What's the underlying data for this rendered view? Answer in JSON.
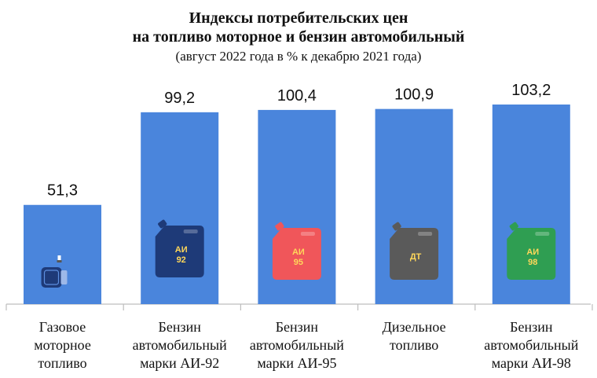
{
  "chart_data": {
    "type": "bar",
    "title": "Индексы потребительских цен",
    "title_line2": "на топливо моторное и бензин автомобильный",
    "subtitle": "(август 2022 года в % к декабрю 2021 года)",
    "categories": [
      [
        "Газовое",
        "моторное",
        "топливо"
      ],
      [
        "Бензин",
        "автомобильный",
        "марки АИ-92"
      ],
      [
        "Бензин",
        "автомобильный",
        "марки АИ-95"
      ],
      [
        "Дизельное",
        "топливо"
      ],
      [
        "Бензин",
        "автомобильный",
        "марки АИ-98"
      ]
    ],
    "values": [
      51.3,
      99.2,
      100.4,
      100.9,
      103.2
    ],
    "value_labels": [
      "51,3",
      "99,2",
      "100,4",
      "100,9",
      "103,2"
    ],
    "icons": [
      {
        "name": "gas-cylinder-icon",
        "color": "#1e3a78",
        "text": ""
      },
      {
        "name": "fuel-canister-icon",
        "color": "#1e3a78",
        "text": "АИ 92",
        "text_color": "#ffd75a"
      },
      {
        "name": "fuel-canister-icon",
        "color": "#f0565a",
        "text": "АИ 95",
        "text_color": "#ffd75a"
      },
      {
        "name": "fuel-canister-icon",
        "color": "#5a5a5a",
        "text": "ДТ",
        "text_color": "#ffd75a"
      },
      {
        "name": "fuel-canister-icon",
        "color": "#2f9e52",
        "text": "АИ 98",
        "text_color": "#ffd75a"
      }
    ],
    "bar_color": "#4a85dc",
    "ylim": [
      0,
      110
    ],
    "grid": false,
    "legend": "none"
  }
}
